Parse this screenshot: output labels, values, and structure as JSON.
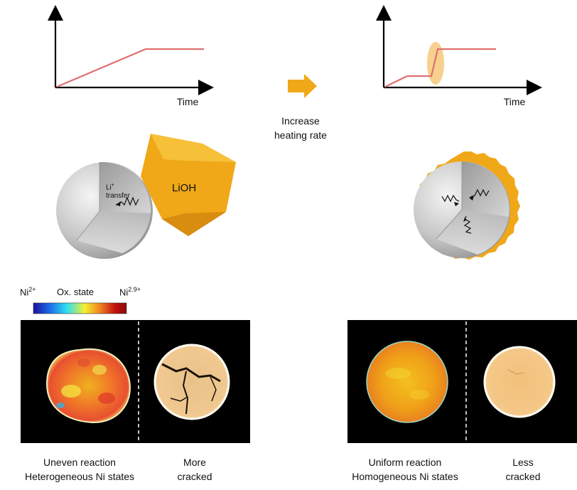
{
  "left_panel": {
    "graph_axis_label": "Time",
    "particle_label": "LiOH",
    "transfer_label_main": "Li",
    "transfer_label_sup": "+",
    "transfer_label_sub": "transfer"
  },
  "middle": {
    "arrow_icon": "right-arrow-icon",
    "caption_line1": "Increase",
    "caption_line2": "heating rate"
  },
  "right_panel": {
    "graph_axis_label": "Time"
  },
  "colorbar": {
    "left_label_main": "Ni",
    "left_label_sup": "2+",
    "center_label": "Ox. state",
    "right_label_main": "Ni",
    "right_label_sup": "2.9+",
    "colors": [
      "#1a10a0",
      "#1e6ee8",
      "#2fe0f0",
      "#f4f030",
      "#f08020",
      "#c01010",
      "#8a0a0a"
    ]
  },
  "image_captions": {
    "left_a_line1": "Uneven reaction",
    "left_a_line2": "Heterogeneous Ni states",
    "left_b_line1": "More",
    "left_b_line2": "cracked",
    "right_a_line1": "Uniform reaction",
    "right_a_line2": "Homogeneous Ni states",
    "right_b_line1": "Less",
    "right_b_line2": "cracked"
  },
  "colors": {
    "profile_line": "#e07070",
    "lioh": "#f0a818",
    "highlight": "#f5c878",
    "sphere": "#c8c8c8"
  }
}
